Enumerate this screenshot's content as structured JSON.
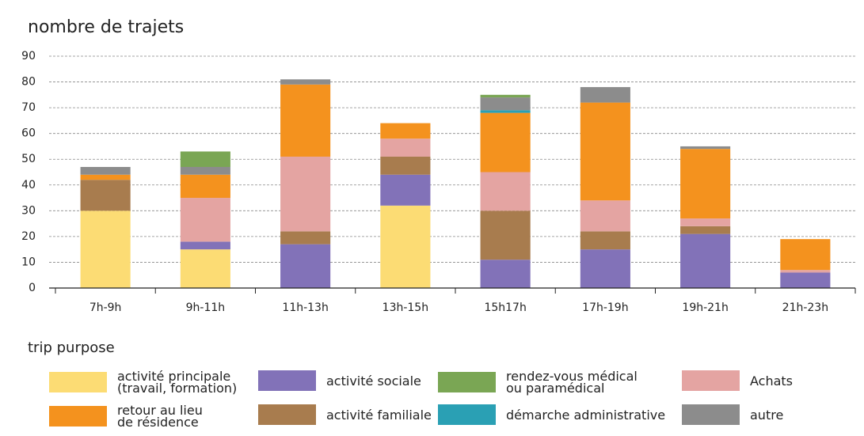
{
  "chart_data": {
    "type": "stacked_bar",
    "title": "nombre de trajets",
    "legend_title": "trip purpose",
    "categories": [
      "7h-9h",
      "9h-11h",
      "11h-13h",
      "13h-15h",
      "15h17h",
      "17h-19h",
      "19h-21h",
      "21h-23h"
    ],
    "series": [
      {
        "name": "activité principale\n(travail, formation)",
        "color": "#fcdc74",
        "values": [
          30,
          15,
          0,
          32,
          0,
          0,
          0,
          0
        ]
      },
      {
        "name": "activité sociale",
        "color": "#8272b8",
        "values": [
          0,
          3,
          17,
          12,
          11,
          15,
          21,
          6
        ]
      },
      {
        "name": "activité familiale",
        "color": "#a87c4e",
        "values": [
          12,
          0,
          5,
          7,
          19,
          7,
          3,
          0
        ]
      },
      {
        "name": "Achats",
        "color": "#e4a4a2",
        "values": [
          0,
          17,
          29,
          7,
          15,
          12,
          3,
          1
        ]
      },
      {
        "name": "retour au lieu\nde résidence",
        "color": "#f4921e",
        "values": [
          2,
          9,
          28,
          6,
          23,
          38,
          27,
          12
        ]
      },
      {
        "name": "démarche administrative",
        "color": "#2aa0b4",
        "values": [
          0,
          0,
          0,
          0,
          1,
          0,
          0,
          0
        ]
      },
      {
        "name": "autre",
        "color": "#8c8c8c",
        "values": [
          3,
          3,
          2,
          0,
          5,
          6,
          1,
          0
        ]
      },
      {
        "name": "rendez-vous médical\nou paramédical",
        "color": "#7aa654",
        "values": [
          0,
          6,
          0,
          0,
          1,
          0,
          0,
          0
        ]
      }
    ],
    "ylim": [
      0,
      90
    ],
    "yticks": [
      0,
      10,
      20,
      30,
      40,
      50,
      60,
      70,
      80,
      90
    ],
    "grid": true
  }
}
